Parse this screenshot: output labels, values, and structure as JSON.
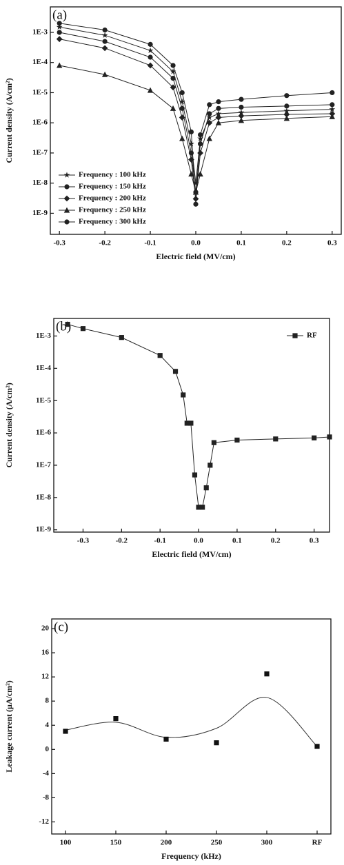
{
  "chart_data": [
    {
      "type": "line",
      "panel_label": "(a)",
      "x_label": "Electric field (MV/cm)",
      "y_label": "Current density (A/cm²)",
      "log_y": true,
      "legend": "lower left",
      "xlim": [
        -0.32,
        0.32
      ],
      "ylim": [
        2e-10,
        0.007
      ],
      "xticks": [
        -0.3,
        -0.2,
        -0.1,
        {
          "value": 0,
          "label": "0.0"
        },
        0.1,
        0.2,
        0.3
      ],
      "yticks": [
        {
          "value": 1e-09,
          "label": "1E-9"
        },
        {
          "value": 1e-08,
          "label": "1E-8"
        },
        {
          "value": 1e-07,
          "label": "1E-7"
        },
        {
          "value": 1e-06,
          "label": "1E-6"
        },
        {
          "value": 1e-05,
          "label": "1E-5"
        },
        {
          "value": 0.0001,
          "label": "1E-4"
        },
        {
          "value": 0.001,
          "label": "1E-3"
        }
      ],
      "x": [
        -0.3,
        -0.2,
        -0.1,
        -0.05,
        -0.03,
        -0.01,
        0,
        0.01,
        0.03,
        0.05,
        0.1,
        0.2,
        0.3
      ],
      "series": [
        {
          "name": "Frequency : 100 kHz",
          "color": "#222",
          "marker": "star",
          "values": [
            0.0015,
            0.0008,
            0.00025,
            5e-05,
            5e-06,
            2e-07,
            1e-08,
            3e-07,
            1.5e-06,
            2e-06,
            2.2e-06,
            2.5e-06,
            2.8e-06
          ]
        },
        {
          "name": "Frequency : 150 kHz",
          "color": "#222",
          "marker": "circle",
          "values": [
            0.001,
            0.0005,
            0.00015,
            3e-05,
            3e-06,
            1e-07,
            5e-09,
            2e-07,
            2e-06,
            3e-06,
            3.3e-06,
            3.6e-06,
            4e-06
          ]
        },
        {
          "name": "Frequency : 200 kHz",
          "color": "#222",
          "marker": "diamond",
          "values": [
            0.0006,
            0.0003,
            8e-05,
            1.5e-05,
            1.5e-06,
            6e-08,
            3e-09,
            1e-07,
            1e-06,
            1.5e-06,
            1.7e-06,
            1.9e-06,
            2e-06
          ]
        },
        {
          "name": "Frequency : 250 kHz",
          "color": "#222",
          "marker": "triangle",
          "values": [
            8e-05,
            4e-05,
            1.2e-05,
            3e-06,
            3e-07,
            2e-08,
            5e-09,
            2e-08,
            3e-07,
            1e-06,
            1.2e-06,
            1.4e-06,
            1.6e-06
          ]
        },
        {
          "name": "Frequency : 300 kHz",
          "color": "#222",
          "marker": "hexagon",
          "values": [
            0.002,
            0.0012,
            0.0004,
            8e-05,
            1e-05,
            5e-07,
            2e-09,
            4e-07,
            4e-06,
            5e-06,
            6e-06,
            8e-06,
            1e-05
          ]
        }
      ]
    },
    {
      "type": "line",
      "panel_label": "(b)",
      "x_label": "Electric field (MV/cm)",
      "y_label": "Current density (A/cm²)",
      "log_y": true,
      "legend": "upper right",
      "xlim": [
        -0.376,
        0.34
      ],
      "ylim": [
        8.5e-10,
        0.0035
      ],
      "xticks": [
        -0.3,
        -0.2,
        -0.1,
        {
          "value": 0,
          "label": "0.0"
        },
        0.1,
        0.2,
        0.3
      ],
      "yticks": [
        {
          "value": 1e-09,
          "label": "1E-9"
        },
        {
          "value": 1e-08,
          "label": "1E-8"
        },
        {
          "value": 1e-07,
          "label": "1E-7"
        },
        {
          "value": 1e-06,
          "label": "1E-6"
        },
        {
          "value": 1e-05,
          "label": "1E-5"
        },
        {
          "value": 0.0001,
          "label": "1E-4"
        },
        {
          "value": 0.001,
          "label": "1E-3"
        }
      ],
      "x": [
        -0.34,
        -0.3,
        -0.2,
        -0.1,
        -0.06,
        -0.04,
        -0.03,
        -0.02,
        -0.01,
        0,
        0.01,
        0.02,
        0.03,
        0.04,
        0.1,
        0.2,
        0.3,
        0.34
      ],
      "series": [
        {
          "name": "RF",
          "color": "#222",
          "marker": "square",
          "values": [
            0.0023,
            0.0017,
            0.0009,
            0.00025,
            8e-05,
            1.5e-05,
            2e-06,
            2e-06,
            5e-08,
            5e-09,
            5e-09,
            2e-08,
            1e-07,
            5e-07,
            6e-07,
            6.5e-07,
            7e-07,
            7.5e-07
          ]
        }
      ]
    },
    {
      "type": "scatter",
      "panel_label": "(c)",
      "x_label": "Frequency (kHz)",
      "y_label": "Leakage current (μA/cm²)",
      "categories": [
        "100",
        "150",
        "200",
        "250",
        "300",
        "RF"
      ],
      "ylim": [
        -14,
        21.6
      ],
      "yticks": [
        -12,
        -8,
        -4,
        0,
        4,
        8,
        12,
        16,
        20
      ],
      "color": "#111",
      "marker": "square",
      "values": [
        3.0,
        5.1,
        1.7,
        1.1,
        12.5,
        0.5
      ],
      "fit": [
        3.2,
        4.5,
        2.0,
        3.5,
        8.6,
        0.5
      ]
    }
  ]
}
